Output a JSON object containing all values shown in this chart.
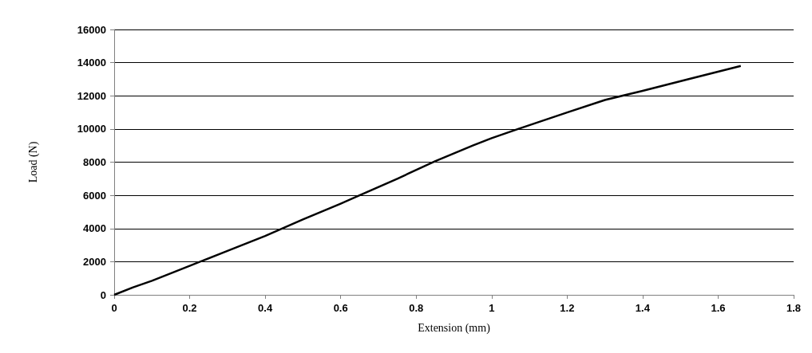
{
  "chart_data": {
    "type": "line",
    "xlabel": "Extension (mm)",
    "ylabel": "Load (N)",
    "x": [
      0,
      0.05,
      0.1,
      0.2,
      0.3,
      0.4,
      0.5,
      0.6,
      0.65,
      0.75,
      0.85,
      0.95,
      1.0,
      1.07,
      1.2,
      1.3,
      1.4,
      1.52,
      1.66
    ],
    "series": [
      {
        "color": "#000000",
        "values": [
          0,
          450,
          850,
          1750,
          2650,
          3550,
          4550,
          5500,
          6000,
          7000,
          8050,
          9000,
          9450,
          10000,
          11000,
          11750,
          12300,
          13000,
          13800
        ]
      }
    ],
    "xlim": [
      0,
      1.8
    ],
    "xticks": [
      0,
      0.2,
      0.4,
      0.6,
      0.8,
      1,
      1.2,
      1.4,
      1.6,
      1.8
    ],
    "ylim": [
      0,
      16000
    ],
    "yticks": [
      0,
      2000,
      4000,
      6000,
      8000,
      10000,
      12000,
      14000,
      16000
    ],
    "grid": "y",
    "marker": "none",
    "line_style": "solid"
  }
}
